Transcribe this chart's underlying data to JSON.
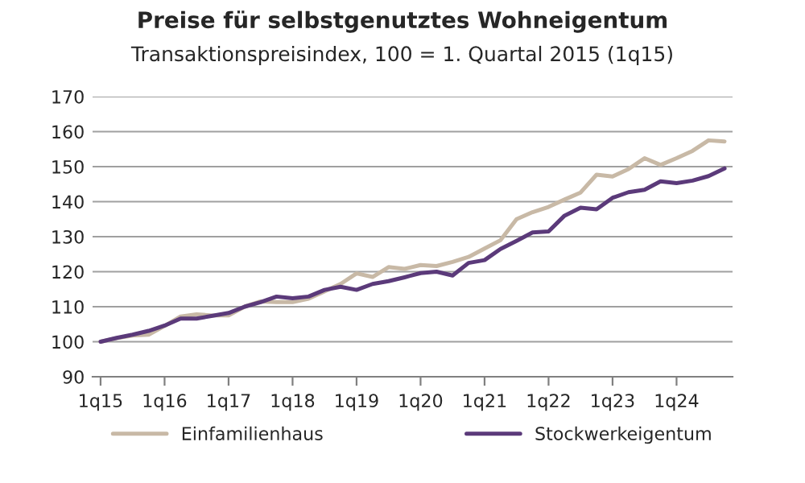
{
  "chart_data": {
    "type": "line",
    "title": "Preise für selbstgenutztes Wohneigentum",
    "subtitle": "Transaktionspreisindex, 100 = 1. Quartal 2015 (1q15)",
    "categories": [
      "1q15",
      null,
      null,
      null,
      "1q16",
      null,
      null,
      null,
      "1q17",
      null,
      null,
      null,
      "1q18",
      null,
      null,
      null,
      "1q19",
      null,
      null,
      null,
      "1q20",
      null,
      null,
      null,
      "1q21",
      null,
      null,
      null,
      "1q22",
      null,
      null,
      null,
      "1q23",
      null,
      null,
      null,
      "1q24",
      null,
      null,
      null
    ],
    "series": [
      {
        "name": "Einfamilienhaus",
        "color": "#c8b9a6",
        "values": [
          100,
          101,
          101.8,
          102,
          104.5,
          107.2,
          107.8,
          107.5,
          107.5,
          110,
          111.5,
          111.3,
          111.3,
          112.3,
          114.4,
          116.5,
          119.5,
          118.5,
          121.3,
          120.8,
          121.9,
          121.6,
          122.8,
          124.2,
          126.6,
          129,
          135,
          137,
          138.5,
          140.6,
          142.6,
          147.7,
          147.2,
          149.3,
          152.4,
          150.5,
          152.4,
          154.5,
          157.5,
          157.2
        ]
      },
      {
        "name": "Stockwerkeigentum",
        "color": "#5b3a7a",
        "values": [
          100,
          101.1,
          102,
          103.1,
          104.6,
          106.6,
          106.6,
          107.4,
          108.2,
          110,
          111.3,
          112.9,
          112.4,
          112.9,
          114.8,
          115.7,
          114.8,
          116.5,
          117.3,
          118.4,
          119.6,
          120,
          118.9,
          122.5,
          123.3,
          126.5,
          128.8,
          131.2,
          131.5,
          136,
          138.3,
          137.8,
          141.1,
          142.7,
          143.4,
          145.8,
          145.3,
          146,
          147.3,
          149.5
        ]
      }
    ],
    "ylim": [
      90,
      170
    ],
    "yticks": [
      90,
      100,
      110,
      120,
      130,
      140,
      150,
      160,
      170
    ],
    "grid": "y",
    "legend": "bottom",
    "line_style": "solid",
    "marker": "none"
  }
}
